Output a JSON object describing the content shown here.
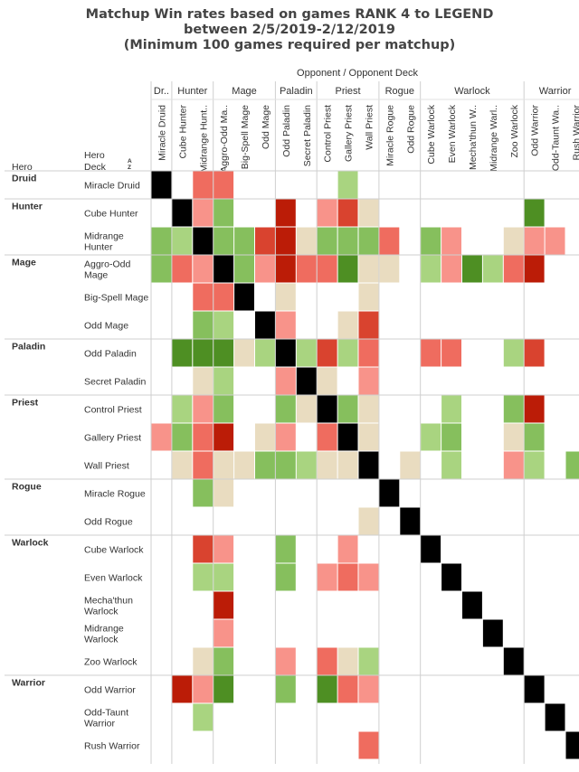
{
  "title_lines": [
    "Matchup Win rates based on games RANK 4 to LEGEND",
    "between 2/5/2019-2/12/2019",
    "(Minimum 100 games required per matchup)"
  ],
  "chart_data": {
    "type": "heatmap",
    "column_header": "Opponent  /  Opponent Deck",
    "row_header_hero": "Hero",
    "row_header_deck": "Hero\nDeck",
    "sort_icon": "sort-az-icon",
    "hero_groups": [
      {
        "name": "Druid",
        "col_label": "Dr..",
        "decks": [
          "Miracle Druid"
        ]
      },
      {
        "name": "Hunter",
        "col_label": "Hunter",
        "decks": [
          "Cube Hunter",
          "Midrange Hunter"
        ]
      },
      {
        "name": "Mage",
        "col_label": "Mage",
        "decks": [
          "Aggro-Odd Mage",
          "Big-Spell Mage",
          "Odd Mage"
        ]
      },
      {
        "name": "Paladin",
        "col_label": "Paladin",
        "decks": [
          "Odd Paladin",
          "Secret Paladin"
        ]
      },
      {
        "name": "Priest",
        "col_label": "Priest",
        "decks": [
          "Control Priest",
          "Gallery Priest",
          "Wall Priest"
        ]
      },
      {
        "name": "Rogue",
        "col_label": "Rogue",
        "decks": [
          "Miracle Rogue",
          "Odd Rogue"
        ]
      },
      {
        "name": "Warlock",
        "col_label": "Warlock",
        "decks": [
          "Cube Warlock",
          "Even Warlock",
          "Mecha'thun Warlock",
          "Midrange Warlock",
          "Zoo Warlock"
        ]
      },
      {
        "name": "Warrior",
        "col_label": "Warrior",
        "decks": [
          "Odd Warrior",
          "Odd-Taunt Warrior",
          "Rush Warrior"
        ]
      }
    ],
    "columns": [
      "Miracle Druid",
      "Cube Hunter",
      "Midrange Hunt..",
      "Aggro-Odd Ma..",
      "Big-Spell Mage",
      "Odd Mage",
      "Odd Paladin",
      "Secret Paladin",
      "Control Priest",
      "Gallery Priest",
      "Wall Priest",
      "Miracle Rogue",
      "Odd Rogue",
      "Cube Warlock",
      "Even Warlock",
      "Mecha'thun W..",
      "Midrange Warl..",
      "Zoo Warlock",
      "Odd Warrior",
      "Odd-Taunt Wa..",
      "Rush Warrior"
    ],
    "rows": [
      {
        "hero": "Druid",
        "label": [
          "Miracle Druid"
        ]
      },
      {
        "hero": "Hunter",
        "label": [
          "Cube Hunter"
        ]
      },
      {
        "hero": "",
        "label": [
          "Midrange",
          "Hunter"
        ]
      },
      {
        "hero": "Mage",
        "label": [
          "Aggro-Odd",
          "Mage"
        ]
      },
      {
        "hero": "",
        "label": [
          "Big-Spell Mage"
        ]
      },
      {
        "hero": "",
        "label": [
          "Odd Mage"
        ]
      },
      {
        "hero": "Paladin",
        "label": [
          "Odd Paladin"
        ]
      },
      {
        "hero": "",
        "label": [
          "Secret Paladin"
        ]
      },
      {
        "hero": "Priest",
        "label": [
          "Control Priest"
        ]
      },
      {
        "hero": "",
        "label": [
          "Gallery Priest"
        ]
      },
      {
        "hero": "",
        "label": [
          "Wall Priest"
        ]
      },
      {
        "hero": "Rogue",
        "label": [
          "Miracle Rogue"
        ]
      },
      {
        "hero": "",
        "label": [
          "Odd Rogue"
        ]
      },
      {
        "hero": "Warlock",
        "label": [
          "Cube Warlock"
        ]
      },
      {
        "hero": "",
        "label": [
          "Even Warlock"
        ]
      },
      {
        "hero": "",
        "label": [
          "Mecha'thun",
          "Warlock"
        ]
      },
      {
        "hero": "",
        "label": [
          "Midrange",
          "Warlock"
        ]
      },
      {
        "hero": "",
        "label": [
          "Zoo Warlock"
        ]
      },
      {
        "hero": "Warrior",
        "label": [
          "Odd Warrior"
        ]
      },
      {
        "hero": "",
        "label": [
          "Odd-Taunt",
          "Warrior"
        ]
      },
      {
        "hero": "",
        "label": [
          "Rush Warrior"
        ]
      }
    ],
    "color_scale": {
      "K": "#000000",
      "DG": "#4e8f23",
      "G": "#86bf5d",
      "LG": "#a9d480",
      "T": "#e9dcc0",
      "P": "#f8938a",
      "R": "#ef6c5f",
      "DR": "#d9432f",
      "VR": "#bb1c07"
    },
    "cells": [
      [
        "K",
        "",
        "R",
        "R",
        "",
        "",
        "",
        "",
        "",
        "LG",
        "",
        "",
        "",
        "",
        "",
        "",
        "",
        "",
        "",
        "",
        ""
      ],
      [
        "",
        "K",
        "P",
        "G",
        "",
        "",
        "VR",
        "",
        "P",
        "DR",
        "T",
        "",
        "",
        "",
        "",
        "",
        "",
        "",
        "DG",
        "",
        ""
      ],
      [
        "G",
        "LG",
        "K",
        "G",
        "G",
        "DR",
        "VR",
        "T",
        "G",
        "G",
        "G",
        "R",
        "",
        "G",
        "P",
        "",
        "",
        "T",
        "P",
        "P",
        ""
      ],
      [
        "G",
        "R",
        "P",
        "K",
        "G",
        "P",
        "VR",
        "R",
        "R",
        "DG",
        "T",
        "T",
        "",
        "LG",
        "P",
        "DG",
        "LG",
        "R",
        "VR",
        "",
        ""
      ],
      [
        "",
        "",
        "R",
        "R",
        "K",
        "",
        "T",
        "",
        "",
        "",
        "T",
        "",
        "",
        "",
        "",
        "",
        "",
        "",
        "",
        "",
        ""
      ],
      [
        "",
        "",
        "G",
        "LG",
        "",
        "K",
        "P",
        "",
        "",
        "T",
        "DR",
        "",
        "",
        "",
        "",
        "",
        "",
        "",
        "",
        "",
        ""
      ],
      [
        "",
        "DG",
        "DG",
        "DG",
        "T",
        "LG",
        "K",
        "LG",
        "DR",
        "LG",
        "R",
        "",
        "",
        "R",
        "R",
        "",
        "",
        "LG",
        "DR",
        "",
        ""
      ],
      [
        "",
        "",
        "T",
        "LG",
        "",
        "",
        "P",
        "K",
        "T",
        "",
        "P",
        "",
        "",
        "",
        "",
        "",
        "",
        "",
        "",
        "",
        ""
      ],
      [
        "",
        "LG",
        "P",
        "G",
        "",
        "",
        "G",
        "T",
        "K",
        "G",
        "T",
        "",
        "",
        "",
        "LG",
        "",
        "",
        "G",
        "VR",
        "",
        ""
      ],
      [
        "P",
        "G",
        "R",
        "VR",
        "",
        "T",
        "P",
        "",
        "R",
        "K",
        "T",
        "",
        "",
        "LG",
        "G",
        "",
        "",
        "T",
        "G",
        "",
        ""
      ],
      [
        "",
        "T",
        "R",
        "T",
        "T",
        "G",
        "G",
        "LG",
        "T",
        "T",
        "K",
        "",
        "T",
        "",
        "LG",
        "",
        "",
        "P",
        "LG",
        "",
        "G"
      ],
      [
        "",
        "",
        "G",
        "T",
        "",
        "",
        "",
        "",
        "",
        "",
        "",
        "K",
        "",
        "",
        "",
        "",
        "",
        "",
        "",
        "",
        ""
      ],
      [
        "",
        "",
        "",
        "",
        "",
        "",
        "",
        "",
        "",
        "",
        "T",
        "",
        "K",
        "",
        "",
        "",
        "",
        "",
        "",
        "",
        ""
      ],
      [
        "",
        "",
        "DR",
        "P",
        "",
        "",
        "G",
        "",
        "",
        "P",
        "",
        "",
        "",
        "K",
        "",
        "",
        "",
        "",
        "",
        "",
        ""
      ],
      [
        "",
        "",
        "LG",
        "LG",
        "",
        "",
        "G",
        "",
        "P",
        "R",
        "P",
        "",
        "",
        "",
        "K",
        "",
        "",
        "",
        "",
        "",
        ""
      ],
      [
        "",
        "",
        "",
        "VR",
        "",
        "",
        "",
        "",
        "",
        "",
        "",
        "",
        "",
        "",
        "",
        "K",
        "",
        "",
        "",
        "",
        ""
      ],
      [
        "",
        "",
        "",
        "P",
        "",
        "",
        "",
        "",
        "",
        "",
        "",
        "",
        "",
        "",
        "",
        "",
        "K",
        "",
        "",
        "",
        ""
      ],
      [
        "",
        "",
        "T",
        "G",
        "",
        "",
        "P",
        "",
        "R",
        "T",
        "LG",
        "",
        "",
        "",
        "",
        "",
        "",
        "K",
        "",
        "",
        ""
      ],
      [
        "",
        "VR",
        "P",
        "DG",
        "",
        "",
        "G",
        "",
        "DG",
        "R",
        "P",
        "",
        "",
        "",
        "",
        "",
        "",
        "",
        "K",
        "",
        ""
      ],
      [
        "",
        "",
        "LG",
        "",
        "",
        "",
        "",
        "",
        "",
        "",
        "",
        "",
        "",
        "",
        "",
        "",
        "",
        "",
        "",
        "K",
        ""
      ],
      [
        "",
        "",
        "",
        "",
        "",
        "",
        "",
        "",
        "",
        "",
        "R",
        "",
        "",
        "",
        "",
        "",
        "",
        "",
        "",
        "",
        "K"
      ]
    ]
  }
}
